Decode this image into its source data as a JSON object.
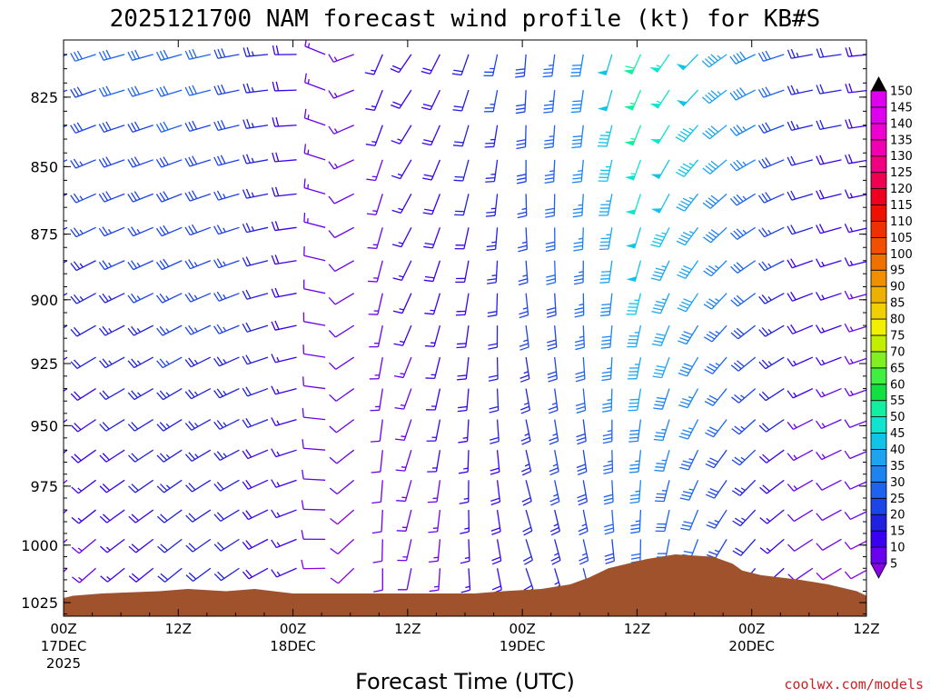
{
  "chart_data": {
    "type": "wind-barb time-height",
    "title": "2025121700 NAM forecast wind profile (kt) for KB#S",
    "xlabel": "Forecast Time (UTC)",
    "units": "kt",
    "x_ticks": [
      {
        "hour": 0,
        "label": "00Z",
        "date": "17DEC",
        "year": "2025"
      },
      {
        "hour": 12,
        "label": "12Z",
        "date": "",
        "year": ""
      },
      {
        "hour": 24,
        "label": "00Z",
        "date": "18DEC",
        "year": ""
      },
      {
        "hour": 36,
        "label": "12Z",
        "date": "",
        "year": ""
      },
      {
        "hour": 48,
        "label": "00Z",
        "date": "19DEC",
        "year": ""
      },
      {
        "hour": 60,
        "label": "12Z",
        "date": "",
        "year": ""
      },
      {
        "hour": 72,
        "label": "00Z",
        "date": "20DEC",
        "year": ""
      },
      {
        "hour": 84,
        "label": "12Z",
        "date": "",
        "year": ""
      }
    ],
    "xlim": [
      0,
      84
    ],
    "y_ticks": [
      825,
      850,
      875,
      900,
      925,
      950,
      975,
      1000,
      1025
    ],
    "ylim": [
      805,
      1031
    ],
    "yscale": "log-pressure",
    "colorbar": {
      "levels": [
        5,
        10,
        15,
        20,
        25,
        30,
        35,
        40,
        45,
        50,
        55,
        60,
        65,
        70,
        75,
        80,
        85,
        90,
        95,
        100,
        105,
        110,
        115,
        120,
        125,
        130,
        135,
        140,
        145,
        150
      ],
      "colors": [
        "#8a00e6",
        "#6a00f0",
        "#3a00f0",
        "#2020e0",
        "#1c44e8",
        "#1c64f0",
        "#1c84f0",
        "#1ca4f0",
        "#10c4e8",
        "#10e4d0",
        "#10f0a0",
        "#10e040",
        "#40f040",
        "#80f020",
        "#c0f000",
        "#f0f000",
        "#f0d000",
        "#f0b000",
        "#f09000",
        "#f07000",
        "#f05000",
        "#f03000",
        "#f01000",
        "#f00020",
        "#f00050",
        "#f00080",
        "#f000b0",
        "#f000d0",
        "#e000f0",
        "#e000f0"
      ],
      "extend": "both"
    },
    "terrain_color": "#a0522d",
    "surface_pressure": [
      {
        "hour": 0,
        "p": 1023
      },
      {
        "hour": 1,
        "p": 1022
      },
      {
        "hour": 4,
        "p": 1021
      },
      {
        "hour": 10,
        "p": 1020
      },
      {
        "hour": 13,
        "p": 1019
      },
      {
        "hour": 17,
        "p": 1020
      },
      {
        "hour": 20,
        "p": 1019
      },
      {
        "hour": 22,
        "p": 1020
      },
      {
        "hour": 24,
        "p": 1021
      },
      {
        "hour": 43,
        "p": 1021
      },
      {
        "hour": 46,
        "p": 1020
      },
      {
        "hour": 50,
        "p": 1019
      },
      {
        "hour": 53,
        "p": 1017
      },
      {
        "hour": 55,
        "p": 1014
      },
      {
        "hour": 57,
        "p": 1010
      },
      {
        "hour": 59,
        "p": 1008
      },
      {
        "hour": 61,
        "p": 1006
      },
      {
        "hour": 64,
        "p": 1004
      },
      {
        "hour": 68,
        "p": 1005
      },
      {
        "hour": 70,
        "p": 1008
      },
      {
        "hour": 71,
        "p": 1011
      },
      {
        "hour": 73,
        "p": 1013
      },
      {
        "hour": 77,
        "p": 1015
      },
      {
        "hour": 80,
        "p": 1017
      },
      {
        "hour": 83,
        "p": 1020
      },
      {
        "hour": 84,
        "p": 1022
      }
    ],
    "wind_profile": [
      {
        "hour": 0,
        "dir": 250,
        "top": 30,
        "sfc": 10
      },
      {
        "hour": 6,
        "dir": 255,
        "top": 32,
        "sfc": 15
      },
      {
        "hour": 12,
        "dir": 255,
        "top": 32,
        "sfc": 20
      },
      {
        "hour": 18,
        "dir": 260,
        "top": 30,
        "sfc": 20
      },
      {
        "hour": 24,
        "dir": 270,
        "top": 20,
        "sfc": 15
      },
      {
        "hour": 28,
        "dir": 300,
        "top": 12,
        "sfc": 8
      },
      {
        "hour": 32,
        "dir": 200,
        "top": 15,
        "sfc": 10
      },
      {
        "hour": 36,
        "dir": 215,
        "top": 18,
        "sfc": 12
      },
      {
        "hour": 42,
        "dir": 200,
        "top": 22,
        "sfc": 15
      },
      {
        "hour": 48,
        "dir": 185,
        "top": 30,
        "sfc": 20
      },
      {
        "hour": 54,
        "dir": 190,
        "top": 40,
        "sfc": 25
      },
      {
        "hour": 60,
        "dir": 205,
        "top": 60,
        "sfc": 30
      },
      {
        "hour": 66,
        "dir": 225,
        "top": 50,
        "sfc": 30
      },
      {
        "hour": 72,
        "dir": 245,
        "top": 40,
        "sfc": 20
      },
      {
        "hour": 78,
        "dir": 260,
        "top": 25,
        "sfc": 10
      },
      {
        "hour": 84,
        "dir": 265,
        "top": 20,
        "sfc": 8
      }
    ]
  },
  "credit": "coolwx.com/models"
}
